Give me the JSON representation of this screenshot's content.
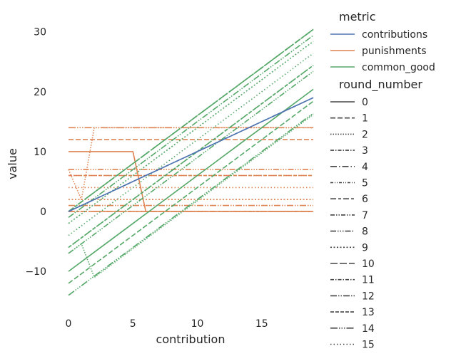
{
  "chart_data": {
    "type": "line",
    "xlabel": "contribution",
    "ylabel": "value",
    "xlim": [
      -0.9,
      19
    ],
    "ylim": [
      -17.5,
      31.5
    ],
    "xticks": [
      0,
      5,
      10,
      15
    ],
    "yticks": [
      -10,
      0,
      10,
      20,
      30
    ],
    "grid": false,
    "legend_placement": "right",
    "x": [
      0,
      1,
      2,
      3,
      4,
      5,
      6,
      7,
      8,
      9,
      10,
      11,
      12,
      13,
      14,
      15,
      16,
      17,
      18,
      19
    ],
    "hue_legend": {
      "title": "metric",
      "entries": [
        {
          "name": "contributions",
          "color": "#4c72b0"
        },
        {
          "name": "punishments",
          "color": "#dd8452"
        },
        {
          "name": "common_good",
          "color": "#55a868"
        }
      ]
    },
    "style_legend": {
      "title": "round_number",
      "entries": [
        "0",
        "1",
        "2",
        "3",
        "4",
        "5",
        "6",
        "7",
        "8",
        "9",
        "10",
        "11",
        "12",
        "13",
        "14",
        "15"
      ]
    },
    "series": [
      {
        "metric": "contributions",
        "round": 0,
        "values": [
          0,
          1,
          2,
          3,
          4,
          5,
          6,
          7,
          8,
          9,
          10,
          11,
          12,
          13,
          14,
          15,
          16,
          17,
          18,
          19
        ]
      },
      {
        "metric": "contributions",
        "round": 7,
        "values": [
          0,
          1,
          2,
          3,
          4,
          5,
          6,
          7,
          8,
          9,
          10,
          11,
          12,
          13,
          14,
          15,
          16,
          17,
          18,
          19
        ]
      },
      {
        "metric": "punishments",
        "round": 0,
        "values": [
          10,
          10,
          10,
          10,
          10,
          10,
          0,
          0,
          0,
          0,
          0,
          0,
          0,
          0,
          0,
          0,
          0,
          0,
          0,
          0
        ]
      },
      {
        "metric": "punishments",
        "round": 1,
        "values": [
          12,
          12,
          12,
          12,
          12,
          12,
          12,
          12,
          12,
          12,
          12,
          12,
          12,
          12,
          12,
          12,
          12,
          12,
          12,
          12
        ]
      },
      {
        "metric": "punishments",
        "round": 14,
        "values": [
          14,
          14,
          14,
          14,
          14,
          14,
          14,
          14,
          14,
          14,
          14,
          14,
          14,
          14,
          14,
          14,
          14,
          14,
          14,
          14
        ]
      },
      {
        "metric": "punishments",
        "round": 2,
        "values": [
          7,
          2,
          14,
          14,
          14,
          14,
          14,
          14,
          14,
          14,
          14,
          14,
          14,
          14,
          14,
          14,
          14,
          14,
          14,
          14
        ]
      },
      {
        "metric": "punishments",
        "round": 8,
        "values": [
          7,
          7,
          7,
          7,
          7,
          7,
          7,
          7,
          7,
          7,
          7,
          7,
          7,
          7,
          7,
          7,
          7,
          7,
          7,
          7
        ]
      },
      {
        "metric": "punishments",
        "round": 3,
        "values": [
          6,
          6,
          6,
          6,
          6,
          6,
          6,
          6,
          6,
          6,
          6,
          6,
          6,
          6,
          6,
          6,
          6,
          6,
          6,
          6
        ]
      },
      {
        "metric": "punishments",
        "round": 13,
        "values": [
          6,
          6,
          6,
          6,
          6,
          6,
          6,
          6,
          6,
          6,
          6,
          6,
          6,
          6,
          6,
          6,
          6,
          6,
          6,
          6
        ]
      },
      {
        "metric": "punishments",
        "round": 15,
        "values": [
          4,
          4,
          4,
          4,
          4,
          4,
          4,
          4,
          4,
          4,
          4,
          4,
          4,
          4,
          4,
          4,
          4,
          4,
          4,
          4
        ]
      },
      {
        "metric": "punishments",
        "round": 9,
        "values": [
          2,
          2,
          2,
          2,
          2,
          2,
          2,
          2,
          2,
          2,
          2,
          2,
          2,
          2,
          2,
          2,
          2,
          2,
          2,
          2
        ]
      },
      {
        "metric": "punishments",
        "round": 12,
        "values": [
          1,
          1,
          1,
          1,
          1,
          1,
          1,
          1,
          1,
          1,
          1,
          1,
          1,
          1,
          1,
          1,
          1,
          1,
          1,
          1
        ]
      },
      {
        "metric": "punishments",
        "round": 4,
        "values": [
          0,
          0,
          0,
          0,
          0,
          0,
          0,
          0,
          0,
          0,
          0,
          0,
          0,
          0,
          0,
          0,
          0,
          0,
          0,
          0
        ]
      },
      {
        "metric": "punishments",
        "round": 6,
        "values": [
          0,
          0,
          0,
          0,
          0,
          0,
          0,
          0,
          0,
          0,
          0,
          0,
          0,
          0,
          0,
          0,
          0,
          0,
          0,
          0
        ]
      },
      {
        "metric": "punishments",
        "round": 11,
        "values": [
          0,
          0,
          0,
          0,
          0,
          0,
          0,
          0,
          0,
          0,
          0,
          0,
          0,
          0,
          0,
          0,
          0,
          0,
          0,
          0
        ]
      },
      {
        "metric": "common_good",
        "round": 0,
        "values": [
          -10,
          -8.4,
          -6.8,
          -5.2,
          -3.6,
          -2,
          -0.4,
          1.2,
          2.8,
          4.4,
          6,
          7.6,
          9.2,
          10.8,
          12.4,
          14,
          15.6,
          17.2,
          18.8,
          20.4
        ]
      },
      {
        "metric": "common_good",
        "round": 1,
        "values": [
          -12,
          -10.4,
          -8.8,
          -7.2,
          -5.6,
          -4,
          -2.4,
          -0.8,
          0.8,
          2.4,
          4,
          5.6,
          7.2,
          8.8,
          10.4,
          12,
          13.6,
          15.2,
          16.8,
          18.4
        ]
      },
      {
        "metric": "common_good",
        "round": 14,
        "values": [
          -14,
          -12.4,
          -10.8,
          -9.2,
          -7.6,
          -6,
          -4.4,
          -2.8,
          -1.2,
          0.4,
          2,
          3.6,
          5.2,
          6.8,
          8.4,
          10,
          11.6,
          13.2,
          14.8,
          16.4
        ]
      },
      {
        "metric": "common_good",
        "round": 4,
        "values": [
          0,
          1.6,
          3.2,
          4.8,
          6.4,
          8,
          9.6,
          11.2,
          12.8,
          14.4,
          16,
          17.6,
          19.2,
          20.8,
          22.4,
          24,
          25.6,
          27.2,
          28.8,
          30.4
        ]
      },
      {
        "metric": "common_good",
        "round": 6,
        "values": [
          0,
          1.6,
          3.2,
          4.8,
          6.4,
          8,
          9.6,
          11.2,
          12.8,
          14.4,
          16,
          17.6,
          19.2,
          20.8,
          22.4,
          24,
          25.6,
          27.2,
          28.8,
          30.4
        ]
      },
      {
        "metric": "common_good",
        "round": 11,
        "values": [
          0,
          1.6,
          3.2,
          4.8,
          6.4,
          8,
          9.6,
          11.2,
          12.8,
          14.4,
          16,
          17.6,
          19.2,
          20.8,
          22.4,
          24,
          25.6,
          27.2,
          28.8,
          30.4
        ]
      },
      {
        "metric": "common_good",
        "round": 12,
        "values": [
          -1,
          0.6,
          2.2,
          3.8,
          5.4,
          7,
          8.6,
          10.2,
          11.8,
          13.4,
          15,
          16.6,
          18.2,
          19.8,
          21.4,
          23,
          24.6,
          26.2,
          27.8,
          29.4
        ]
      },
      {
        "metric": "common_good",
        "round": 9,
        "values": [
          -2,
          -0.4,
          1.2,
          2.8,
          4.4,
          6,
          7.6,
          9.2,
          10.8,
          12.4,
          14,
          15.6,
          17.2,
          18.8,
          20.4,
          22,
          23.6,
          25.2,
          26.8,
          28.4
        ]
      },
      {
        "metric": "common_good",
        "round": 15,
        "values": [
          -4,
          -2.4,
          -0.8,
          0.8,
          2.4,
          4,
          5.6,
          7.2,
          8.8,
          10.4,
          12,
          13.6,
          15.2,
          16.8,
          18.4,
          20,
          21.6,
          23.2,
          24.8,
          26.4
        ]
      },
      {
        "metric": "common_good",
        "round": 3,
        "values": [
          -6,
          -4.4,
          -2.8,
          -1.2,
          0.4,
          2,
          3.6,
          5.2,
          6.8,
          8.4,
          10,
          11.6,
          13.2,
          14.8,
          16.4,
          18,
          19.6,
          21.2,
          22.8,
          24.4
        ]
      },
      {
        "metric": "common_good",
        "round": 13,
        "values": [
          -6,
          -4.4,
          -2.8,
          -1.2,
          0.4,
          2,
          3.6,
          5.2,
          6.8,
          8.4,
          10,
          11.6,
          13.2,
          14.8,
          16.4,
          18,
          19.6,
          21.2,
          22.8,
          24.4
        ]
      },
      {
        "metric": "common_good",
        "round": 8,
        "values": [
          -7,
          -5.4,
          -3.8,
          -2.2,
          -0.6,
          1,
          2.6,
          4.2,
          5.8,
          7.4,
          9,
          10.6,
          12.2,
          13.8,
          15.4,
          17,
          18.6,
          20.2,
          21.8,
          23.4
        ]
      },
      {
        "metric": "common_good",
        "round": 2,
        "values": [
          -7,
          -5.4,
          -11,
          -9.4,
          -7.8,
          -6.2,
          -4.6,
          -3,
          -1.4,
          0.2,
          1.8,
          3.4,
          5,
          6.6,
          8.2,
          9.8,
          11.4,
          13,
          14.6,
          16.2
        ]
      }
    ]
  }
}
